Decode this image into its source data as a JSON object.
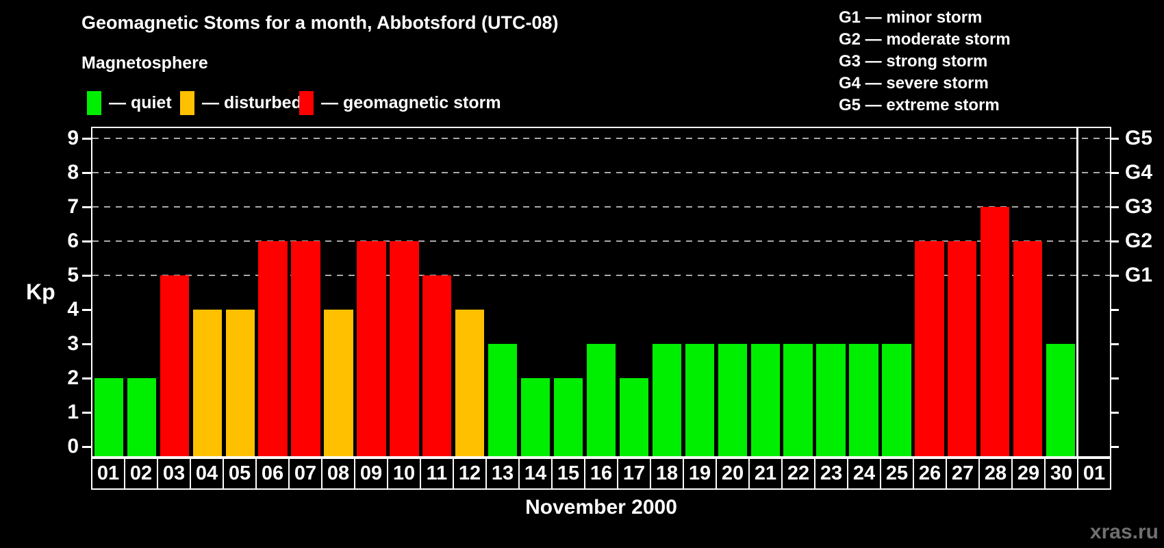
{
  "header": {
    "title": "Geomagnetic Stoms for a month, Abbotsford (UTC-08)",
    "subtitle": "Magnetosphere",
    "legend": [
      {
        "key": "quiet",
        "label": "— quiet"
      },
      {
        "key": "disturbed",
        "label": "— disturbed"
      },
      {
        "key": "storm",
        "label": "— geomagnetic storm"
      }
    ],
    "g_scale": [
      {
        "label": "G1 — minor storm"
      },
      {
        "label": "G2 — moderate storm"
      },
      {
        "label": "G3 — strong storm"
      },
      {
        "label": "G4 — severe storm"
      },
      {
        "label": "G5 — extreme storm"
      }
    ]
  },
  "chart_data": {
    "type": "bar",
    "title": "Geomagnetic Stoms for a month, Abbotsford (UTC-08)",
    "xlabel": "November 2000",
    "ylabel": "Kp",
    "ylim": [
      0,
      9
    ],
    "yticks": [
      0,
      1,
      2,
      3,
      4,
      5,
      6,
      7,
      8,
      9
    ],
    "gridlines_at": [
      5,
      6,
      7,
      8,
      9
    ],
    "grid": "dashed, only at G-storm levels",
    "right_axis": [
      {
        "kp": 5,
        "label": "G1"
      },
      {
        "kp": 6,
        "label": "G2"
      },
      {
        "kp": 7,
        "label": "G3"
      },
      {
        "kp": 8,
        "label": "G4"
      },
      {
        "kp": 9,
        "label": "G5"
      }
    ],
    "categories": [
      "01",
      "02",
      "03",
      "04",
      "05",
      "06",
      "07",
      "08",
      "09",
      "10",
      "11",
      "12",
      "13",
      "14",
      "15",
      "16",
      "17",
      "18",
      "19",
      "20",
      "21",
      "22",
      "23",
      "24",
      "25",
      "26",
      "27",
      "28",
      "29",
      "30",
      "01"
    ],
    "values": [
      2,
      2,
      5,
      4,
      4,
      6,
      6,
      4,
      6,
      6,
      5,
      4,
      3,
      2,
      2,
      3,
      2,
      3,
      3,
      3,
      3,
      3,
      3,
      3,
      3,
      6,
      6,
      7,
      6,
      3,
      null
    ],
    "statuses": [
      "quiet",
      "quiet",
      "storm",
      "disturbed",
      "disturbed",
      "storm",
      "storm",
      "disturbed",
      "storm",
      "storm",
      "storm",
      "disturbed",
      "quiet",
      "quiet",
      "quiet",
      "quiet",
      "quiet",
      "quiet",
      "quiet",
      "quiet",
      "quiet",
      "quiet",
      "quiet",
      "quiet",
      "quiet",
      "storm",
      "storm",
      "storm",
      "storm",
      "quiet",
      null
    ],
    "colors": {
      "quiet": "#00ee00",
      "disturbed": "#ffc000",
      "storm": "#ff0000"
    },
    "last_column_note": "next month first day, no bar, separated by vertical line"
  },
  "footer": {
    "watermark": "xras.ru"
  }
}
